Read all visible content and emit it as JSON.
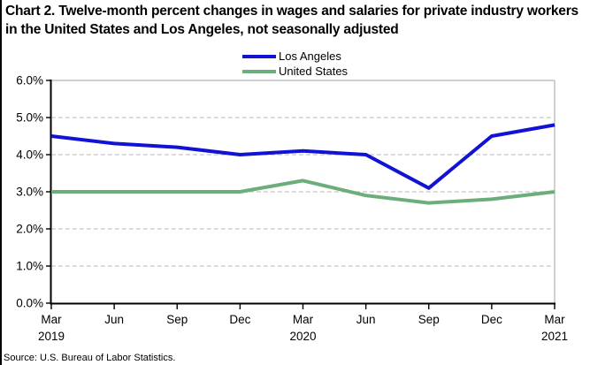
{
  "title": "Chart 2. Twelve-month percent changes in wages and salaries for private industry workers in the United States and Los Angeles, not seasonally adjusted",
  "source": "Source: U.S. Bureau of Labor Statistics.",
  "colors": {
    "los_angeles": "#1212D6",
    "united_states": "#6BAE7B",
    "grid": "#C8C8C8",
    "plot_border": "#C0C0C0",
    "axis": "#000000",
    "text": "#000000"
  },
  "chart_data": {
    "type": "line",
    "categories": [
      "Mar 2019",
      "Jun 2019",
      "Sep 2019",
      "Dec 2019",
      "Mar 2020",
      "Jun 2020",
      "Sep 2020",
      "Dec 2020",
      "Mar 2021"
    ],
    "x_tick_labels": [
      {
        "month": "Mar",
        "year": "2019"
      },
      {
        "month": "Jun",
        "year": ""
      },
      {
        "month": "Sep",
        "year": ""
      },
      {
        "month": "Dec",
        "year": ""
      },
      {
        "month": "Mar",
        "year": "2020"
      },
      {
        "month": "Jun",
        "year": ""
      },
      {
        "month": "Sep",
        "year": ""
      },
      {
        "month": "Dec",
        "year": ""
      },
      {
        "month": "Mar",
        "year": "2021"
      }
    ],
    "series": [
      {
        "name": "Los Angeles",
        "color": "#1212D6",
        "values": [
          4.5,
          4.3,
          4.2,
          4.0,
          4.1,
          4.0,
          3.1,
          4.5,
          4.8
        ]
      },
      {
        "name": "United States",
        "color": "#6BAE7B",
        "values": [
          3.0,
          3.0,
          3.0,
          3.0,
          3.3,
          2.9,
          2.7,
          2.8,
          3.0
        ]
      }
    ],
    "ylim": [
      0,
      6
    ],
    "ytick_step": 1,
    "ytick_labels": [
      "0.0%",
      "1.0%",
      "2.0%",
      "3.0%",
      "4.0%",
      "5.0%",
      "6.0%"
    ],
    "grid": true,
    "legend_position": "top-center"
  }
}
